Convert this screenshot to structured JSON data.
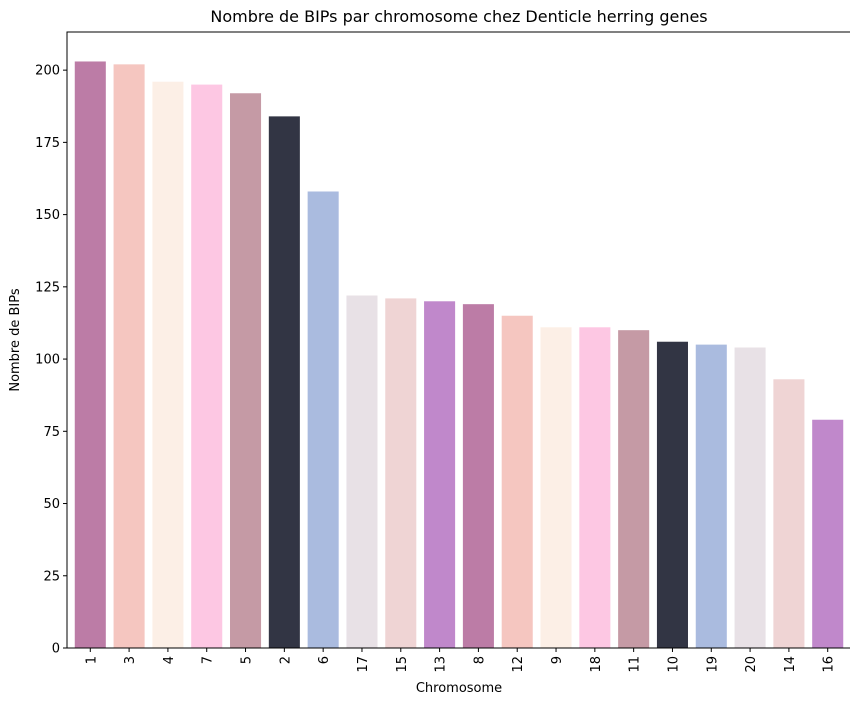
{
  "chart_data": {
    "type": "bar",
    "title": "Nombre de BIPs par chromosome chez Denticle herring genes",
    "xlabel": "Chromosome",
    "ylabel": "Nombre de BIPs",
    "categories": [
      "1",
      "3",
      "4",
      "7",
      "5",
      "2",
      "6",
      "17",
      "15",
      "13",
      "8",
      "12",
      "9",
      "18",
      "11",
      "10",
      "19",
      "20",
      "14",
      "16"
    ],
    "values": [
      203,
      202,
      196,
      195,
      192,
      184,
      158,
      122,
      121,
      120,
      119,
      115,
      111,
      111,
      110,
      106,
      105,
      104,
      93,
      79
    ],
    "colors": [
      "#bc7ca6",
      "#f5c6c0",
      "#fcefe6",
      "#fdc7e3",
      "#c59aa5",
      "#323544",
      "#aabbdf",
      "#e8e1e6",
      "#efd4d4",
      "#c088cb",
      "#bc7ca6",
      "#f5c6c0",
      "#fcefe6",
      "#fdc7e3",
      "#c59aa5",
      "#323544",
      "#aabbdf",
      "#e8e1e6",
      "#efd4d4",
      "#c088cb"
    ],
    "ylim": [
      0,
      213.2
    ],
    "yticks": [
      0,
      25,
      50,
      75,
      100,
      125,
      150,
      175,
      200
    ],
    "grid": false,
    "legend": "none",
    "xtick_rotation": "vertical"
  }
}
